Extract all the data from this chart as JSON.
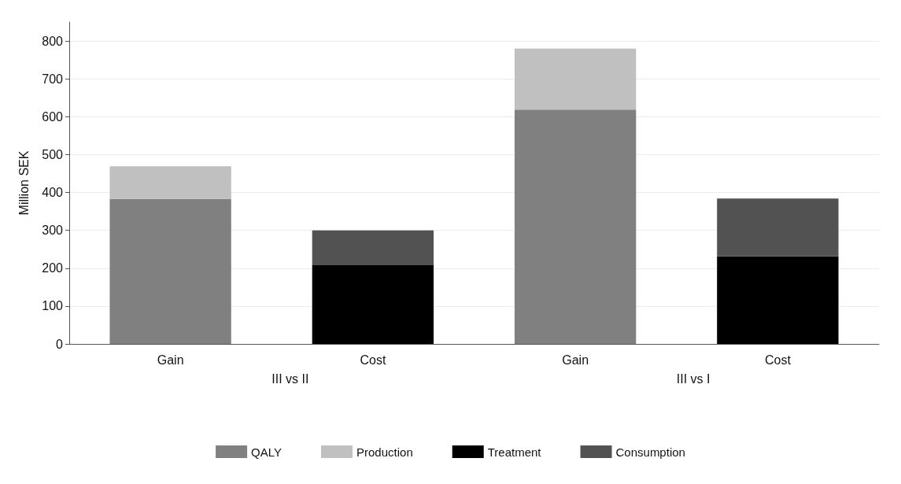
{
  "chart_data": {
    "type": "bar",
    "stacked": true,
    "ylabel": "Million SEK",
    "categories": [
      "Gain",
      "Cost",
      "Gain",
      "Cost"
    ],
    "annotations": [
      "III vs II",
      "III vs I"
    ],
    "series": [
      {
        "name": "QALY",
        "color": "#808080",
        "values": [
          383,
          null,
          619,
          null
        ]
      },
      {
        "name": "Production",
        "color": "#c0c0c0",
        "values": [
          86,
          null,
          161,
          null
        ]
      },
      {
        "name": "Treatment",
        "color": "#000000",
        "values": [
          null,
          208,
          null,
          231
        ]
      },
      {
        "name": "Consumption",
        "color": "#525252",
        "values": [
          null,
          92,
          null,
          153
        ]
      }
    ],
    "ylim": [
      0,
      850
    ],
    "yticks": [
      0,
      100,
      200,
      300,
      400,
      500,
      600,
      700,
      800
    ],
    "grid": "y",
    "legend": "bottom"
  }
}
